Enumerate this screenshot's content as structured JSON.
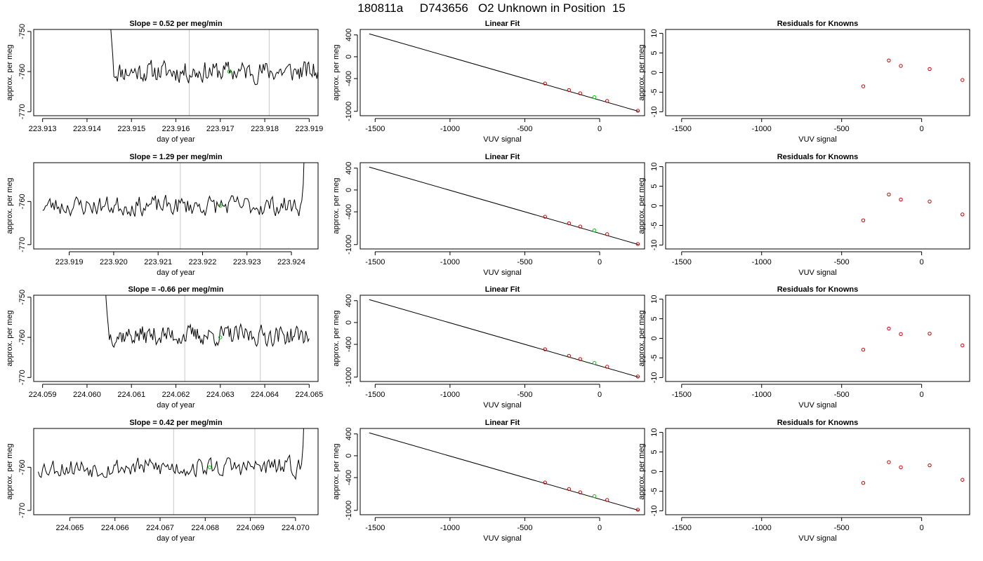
{
  "figure": {
    "title": "180811a     D743656   O2 Unknown in Position  15"
  },
  "colors": {
    "trace": "#000000",
    "frame": "#000000",
    "window_line": "#c8c8c8",
    "highlight_point": "#00cc00",
    "known_point": "#cc0000"
  },
  "chart_data": [
    {
      "type": "line",
      "row": 0,
      "col": 0,
      "title": "Slope =  0.52  per meg/min",
      "xlabel": "day of year",
      "ylabel": "approx. per meg",
      "xlim": [
        223.9128,
        223.9192
      ],
      "ylim": [
        -771,
        -749.5
      ],
      "xticks": [
        "223.913",
        "223.914",
        "223.915",
        "223.916",
        "223.917",
        "223.918",
        "223.919"
      ],
      "xtick_values": [
        223.913,
        223.914,
        223.915,
        223.916,
        223.917,
        223.918,
        223.919
      ],
      "yticks": [
        "-750",
        "-760",
        "-770"
      ],
      "ytick_values": [
        -750,
        -760,
        -770
      ],
      "vlines": [
        223.9163,
        223.9181
      ],
      "trace_x_range": [
        223.9145,
        223.9192
      ],
      "trace_start_values": [
        -740,
        -748,
        -752,
        -756
      ],
      "trace_mean": -760,
      "trace_amplitude": 3,
      "trace_seed": 11,
      "highlight_point": {
        "x": 223.9172,
        "y": -760
      }
    },
    {
      "type": "scatter",
      "row": 0,
      "col": 1,
      "title": "Linear Fit",
      "xlabel": "VUV signal",
      "ylabel": "approx. per meg",
      "xlim": [
        -1600,
        300
      ],
      "ylim": [
        -1080,
        500
      ],
      "xticks": [
        "-1500",
        "-1000",
        "-500",
        "0"
      ],
      "xtick_values": [
        -1500,
        -1000,
        -500,
        0
      ],
      "yticks": [
        "400",
        "0",
        "-400",
        "-1000"
      ],
      "ytick_values": [
        400,
        0,
        -400,
        -1000
      ],
      "fit_line": {
        "x": [
          -1540,
          260
        ],
        "y": [
          420,
          -1000
        ]
      },
      "points": [
        {
          "x": -365,
          "y": -490,
          "kind": "known"
        },
        {
          "x": -205,
          "y": -610,
          "kind": "known"
        },
        {
          "x": -130,
          "y": -670,
          "kind": "known"
        },
        {
          "x": -35,
          "y": -740,
          "kind": "unknown"
        },
        {
          "x": 50,
          "y": -810,
          "kind": "known"
        },
        {
          "x": 255,
          "y": -990,
          "kind": "known"
        }
      ]
    },
    {
      "type": "scatter",
      "row": 0,
      "col": 2,
      "title": "Residuals for Knowns",
      "xlabel": "VUV signal",
      "ylabel": "approx. per meg",
      "xlim": [
        -1600,
        300
      ],
      "ylim": [
        -11,
        11
      ],
      "xticks": [
        "-1500",
        "-1000",
        "-500",
        "0"
      ],
      "xtick_values": [
        -1500,
        -1000,
        -500,
        0
      ],
      "yticks": [
        "10",
        "5",
        "0",
        "-5",
        "-10"
      ],
      "ytick_values": [
        10,
        5,
        0,
        -5,
        -10
      ],
      "points": [
        {
          "x": -365,
          "y": -3.5,
          "kind": "known"
        },
        {
          "x": -205,
          "y": 3.1,
          "kind": "known"
        },
        {
          "x": -130,
          "y": 1.7,
          "kind": "known"
        },
        {
          "x": 50,
          "y": 0.9,
          "kind": "known"
        },
        {
          "x": 255,
          "y": -1.9,
          "kind": "known"
        }
      ]
    },
    {
      "type": "line",
      "row": 1,
      "col": 0,
      "title": "Slope =  1.29  per meg/min",
      "xlabel": "day of year",
      "ylabel": "approx. per meg",
      "xlim": [
        223.9182,
        223.9246
      ],
      "ylim": [
        -771,
        -751
      ],
      "xticks": [
        "223.919",
        "223.920",
        "223.921",
        "223.922",
        "223.923",
        "223.924"
      ],
      "xtick_values": [
        223.919,
        223.92,
        223.921,
        223.922,
        223.923,
        223.924
      ],
      "yticks": [
        "-760",
        "-770"
      ],
      "ytick_values": [
        -760,
        -770
      ],
      "vlines": [
        223.9215,
        223.9233
      ],
      "trace_x_range": [
        223.9184,
        223.9243
      ],
      "trace_start_values": [],
      "trace_end_values": [
        -756,
        -745
      ],
      "trace_mean": -761,
      "trace_amplitude": 2.6,
      "trace_seed": 23,
      "highlight_point": {
        "x": 223.9224,
        "y": -761
      }
    },
    {
      "type": "scatter",
      "row": 1,
      "col": 1,
      "title": "Linear Fit",
      "xlabel": "VUV signal",
      "ylabel": "approx. per meg",
      "xlim": [
        -1600,
        300
      ],
      "ylim": [
        -1080,
        500
      ],
      "xticks": [
        "-1500",
        "-1000",
        "-500",
        "0"
      ],
      "xtick_values": [
        -1500,
        -1000,
        -500,
        0
      ],
      "yticks": [
        "400",
        "0",
        "-400",
        "-1000"
      ],
      "ytick_values": [
        400,
        0,
        -400,
        -1000
      ],
      "fit_line": {
        "x": [
          -1540,
          260
        ],
        "y": [
          420,
          -1000
        ]
      },
      "points": [
        {
          "x": -365,
          "y": -490,
          "kind": "known"
        },
        {
          "x": -205,
          "y": -610,
          "kind": "known"
        },
        {
          "x": -130,
          "y": -670,
          "kind": "known"
        },
        {
          "x": -35,
          "y": -740,
          "kind": "unknown"
        },
        {
          "x": 50,
          "y": -810,
          "kind": "known"
        },
        {
          "x": 255,
          "y": -990,
          "kind": "known"
        }
      ]
    },
    {
      "type": "scatter",
      "row": 1,
      "col": 2,
      "title": "Residuals for Knowns",
      "xlabel": "VUV signal",
      "ylabel": "approx. per meg",
      "xlim": [
        -1600,
        300
      ],
      "ylim": [
        -11,
        11
      ],
      "xticks": [
        "-1500",
        "-1000",
        "-500",
        "0"
      ],
      "xtick_values": [
        -1500,
        -1000,
        -500,
        0
      ],
      "yticks": [
        "10",
        "5",
        "0",
        "-5",
        "-10"
      ],
      "ytick_values": [
        10,
        5,
        0,
        -5,
        -10
      ],
      "points": [
        {
          "x": -365,
          "y": -3.7,
          "kind": "known"
        },
        {
          "x": -205,
          "y": 2.9,
          "kind": "known"
        },
        {
          "x": -130,
          "y": 1.6,
          "kind": "known"
        },
        {
          "x": 50,
          "y": 1.1,
          "kind": "known"
        },
        {
          "x": 255,
          "y": -2.2,
          "kind": "known"
        }
      ]
    },
    {
      "type": "line",
      "row": 2,
      "col": 0,
      "title": "Slope =  -0.66  per meg/min",
      "xlabel": "day of year",
      "ylabel": "approx. per meg",
      "xlim": [
        224.0588,
        224.0652
      ],
      "ylim": [
        -771,
        -749.5
      ],
      "xticks": [
        "224.059",
        "224.060",
        "224.061",
        "224.062",
        "224.063",
        "224.064",
        "224.065"
      ],
      "xtick_values": [
        224.059,
        224.06,
        224.061,
        224.062,
        224.063,
        224.064,
        224.065
      ],
      "yticks": [
        "-750",
        "-760",
        "-770"
      ],
      "ytick_values": [
        -750,
        -760,
        -770
      ],
      "vlines": [
        224.0622,
        224.0639
      ],
      "trace_x_range": [
        224.0604,
        224.065
      ],
      "trace_start_values": [
        -740,
        -750,
        -754,
        -757
      ],
      "trace_mean": -759.5,
      "trace_amplitude": 2.8,
      "trace_seed": 37,
      "highlight_point": {
        "x": 224.063,
        "y": -760
      }
    },
    {
      "type": "scatter",
      "row": 2,
      "col": 1,
      "title": "Linear Fit",
      "xlabel": "VUV signal",
      "ylabel": "approx. per meg",
      "xlim": [
        -1600,
        300
      ],
      "ylim": [
        -1080,
        500
      ],
      "xticks": [
        "-1500",
        "-1000",
        "-500",
        "0"
      ],
      "xtick_values": [
        -1500,
        -1000,
        -500,
        0
      ],
      "yticks": [
        "400",
        "0",
        "-400",
        "-1000"
      ],
      "ytick_values": [
        400,
        0,
        -400,
        -1000
      ],
      "fit_line": {
        "x": [
          -1540,
          260
        ],
        "y": [
          420,
          -1000
        ]
      },
      "points": [
        {
          "x": -365,
          "y": -490,
          "kind": "known"
        },
        {
          "x": -205,
          "y": -610,
          "kind": "known"
        },
        {
          "x": -130,
          "y": -670,
          "kind": "known"
        },
        {
          "x": -35,
          "y": -740,
          "kind": "unknown"
        },
        {
          "x": 50,
          "y": -810,
          "kind": "known"
        },
        {
          "x": 255,
          "y": -990,
          "kind": "known"
        }
      ]
    },
    {
      "type": "scatter",
      "row": 2,
      "col": 2,
      "title": "Residuals for Knowns",
      "xlabel": "VUV signal",
      "ylabel": "approx. per meg",
      "xlim": [
        -1600,
        300
      ],
      "ylim": [
        -11,
        11
      ],
      "xticks": [
        "-1500",
        "-1000",
        "-500",
        "0"
      ],
      "xtick_values": [
        -1500,
        -1000,
        -500,
        0
      ],
      "yticks": [
        "10",
        "5",
        "0",
        "-5",
        "-10"
      ],
      "ytick_values": [
        10,
        5,
        0,
        -5,
        -10
      ],
      "points": [
        {
          "x": -365,
          "y": -2.9,
          "kind": "known"
        },
        {
          "x": -205,
          "y": 2.5,
          "kind": "known"
        },
        {
          "x": -130,
          "y": 1.1,
          "kind": "known"
        },
        {
          "x": 50,
          "y": 1.2,
          "kind": "known"
        },
        {
          "x": 255,
          "y": -1.8,
          "kind": "known"
        }
      ]
    },
    {
      "type": "line",
      "row": 3,
      "col": 0,
      "title": "Slope =  0.42  per meg/min",
      "xlabel": "day of year",
      "ylabel": "approx. per meg",
      "xlim": [
        224.0642,
        224.0705
      ],
      "ylim": [
        -771,
        -751
      ],
      "xticks": [
        "224.065",
        "224.066",
        "224.067",
        "224.068",
        "224.069",
        "224.070"
      ],
      "xtick_values": [
        224.065,
        224.066,
        224.067,
        224.068,
        224.069,
        224.07
      ],
      "yticks": [
        "-760",
        "-770"
      ],
      "ytick_values": [
        -760,
        -770
      ],
      "vlines": [
        224.0673,
        224.0691
      ],
      "trace_x_range": [
        224.0643,
        224.0702
      ],
      "trace_start_values": [],
      "trace_end_values": [
        -755,
        -745
      ],
      "trace_mean": -760,
      "trace_amplitude": 2.6,
      "trace_seed": 53,
      "highlight_point": {
        "x": 224.0681,
        "y": -760
      }
    },
    {
      "type": "scatter",
      "row": 3,
      "col": 1,
      "title": "Linear Fit",
      "xlabel": "VUV signal",
      "ylabel": "approx. per meg",
      "xlim": [
        -1600,
        300
      ],
      "ylim": [
        -1080,
        500
      ],
      "xticks": [
        "-1500",
        "-1000",
        "-500",
        "0"
      ],
      "xtick_values": [
        -1500,
        -1000,
        -500,
        0
      ],
      "yticks": [
        "400",
        "0",
        "-400",
        "-1000"
      ],
      "ytick_values": [
        400,
        0,
        -400,
        -1000
      ],
      "fit_line": {
        "x": [
          -1540,
          260
        ],
        "y": [
          420,
          -1000
        ]
      },
      "points": [
        {
          "x": -365,
          "y": -490,
          "kind": "known"
        },
        {
          "x": -205,
          "y": -610,
          "kind": "known"
        },
        {
          "x": -130,
          "y": -670,
          "kind": "known"
        },
        {
          "x": -35,
          "y": -740,
          "kind": "unknown"
        },
        {
          "x": 50,
          "y": -810,
          "kind": "known"
        },
        {
          "x": 255,
          "y": -990,
          "kind": "known"
        }
      ]
    },
    {
      "type": "scatter",
      "row": 3,
      "col": 2,
      "title": "Residuals for Knowns",
      "xlabel": "VUV signal",
      "ylabel": "approx. per meg",
      "xlim": [
        -1600,
        300
      ],
      "ylim": [
        -11,
        11
      ],
      "xticks": [
        "-1500",
        "-1000",
        "-500",
        "0"
      ],
      "xtick_values": [
        -1500,
        -1000,
        -500,
        0
      ],
      "yticks": [
        "10",
        "5",
        "0",
        "-5",
        "-10"
      ],
      "ytick_values": [
        10,
        5,
        0,
        -5,
        -10
      ],
      "points": [
        {
          "x": -365,
          "y": -2.9,
          "kind": "known"
        },
        {
          "x": -205,
          "y": 2.4,
          "kind": "known"
        },
        {
          "x": -130,
          "y": 1.1,
          "kind": "known"
        },
        {
          "x": 50,
          "y": 1.6,
          "kind": "known"
        },
        {
          "x": 255,
          "y": -2.1,
          "kind": "known"
        }
      ]
    }
  ]
}
